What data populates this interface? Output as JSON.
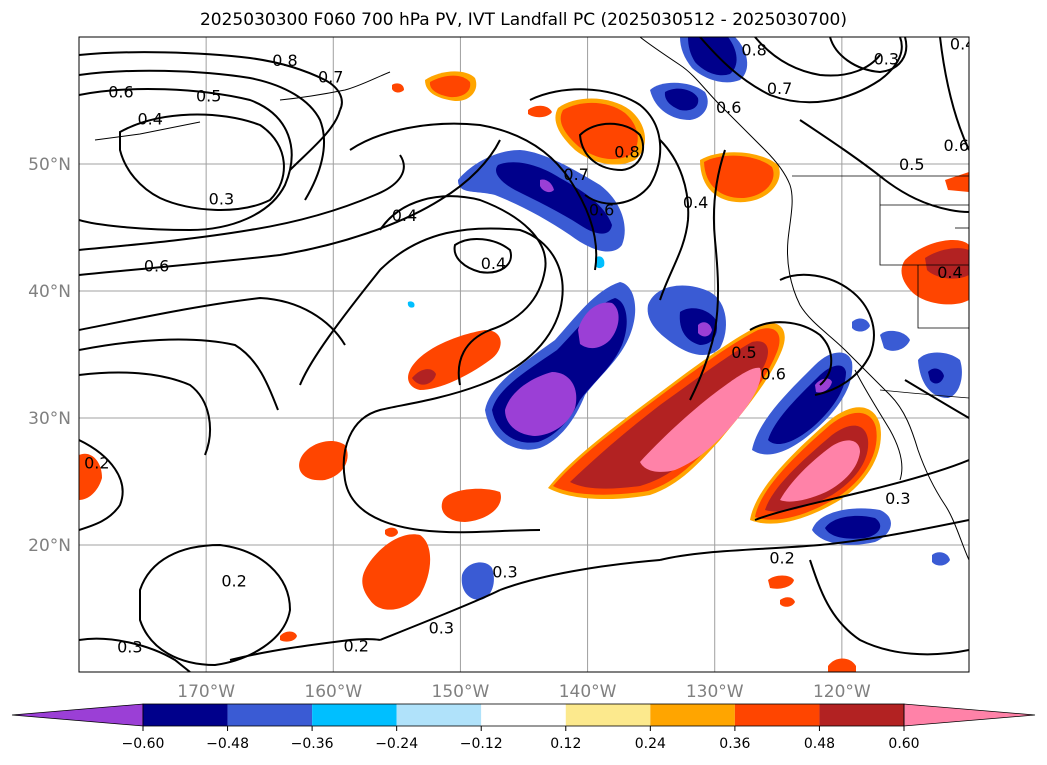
{
  "title": "2025030300 F060 700 hPa PV, IVT Landfall PC (2025030512 - 2025030700)",
  "map": {
    "lon_range": [
      -180,
      -110
    ],
    "lat_range": [
      10,
      60
    ],
    "lat_labels": [
      "50°N",
      "40°N",
      "30°N",
      "20°N"
    ],
    "lon_labels": [
      "170°W",
      "160°W",
      "150°W",
      "140°W",
      "130°W",
      "120°W"
    ],
    "gridlines": true
  },
  "pv_contours": {
    "labels": [
      {
        "text": "0.8",
        "lon": -163.8,
        "lat": 58.2
      },
      {
        "text": "0.7",
        "lon": -160.2,
        "lat": 56.9
      },
      {
        "text": "0.6",
        "lon": -176.7,
        "lat": 55.7
      },
      {
        "text": "0.5",
        "lon": -169.8,
        "lat": 55.4
      },
      {
        "text": "0.4",
        "lon": -174.4,
        "lat": 53.6
      },
      {
        "text": "0.3",
        "lon": -168.8,
        "lat": 47.3
      },
      {
        "text": "0.4",
        "lon": -154.4,
        "lat": 46.0
      },
      {
        "text": "0.6",
        "lon": -173.9,
        "lat": 42.0
      },
      {
        "text": "0.4",
        "lon": -147.4,
        "lat": 42.2
      },
      {
        "text": "0.8",
        "lon": -136.9,
        "lat": 51.0
      },
      {
        "text": "0.7",
        "lon": -140.9,
        "lat": 49.2
      },
      {
        "text": "0.6",
        "lon": -138.9,
        "lat": 46.4
      },
      {
        "text": "0.8",
        "lon": -126.9,
        "lat": 59.0
      },
      {
        "text": "0.7",
        "lon": -124.9,
        "lat": 56.0
      },
      {
        "text": "0.6",
        "lon": -128.9,
        "lat": 54.5
      },
      {
        "text": "0.3",
        "lon": -116.5,
        "lat": 58.3
      },
      {
        "text": "0.5",
        "lon": -114.5,
        "lat": 50.0
      },
      {
        "text": "0.6",
        "lon": -111.0,
        "lat": 51.5
      },
      {
        "text": "0.4",
        "lon": -110.5,
        "lat": 59.5
      },
      {
        "text": "0.4",
        "lon": -131.5,
        "lat": 47.0
      },
      {
        "text": "0.4",
        "lon": -111.5,
        "lat": 41.5
      },
      {
        "text": "0.5",
        "lon": -127.7,
        "lat": 35.2
      },
      {
        "text": "0.6",
        "lon": -125.4,
        "lat": 33.5
      },
      {
        "text": "0.3",
        "lon": -115.6,
        "lat": 23.7
      },
      {
        "text": "0.2",
        "lon": -124.7,
        "lat": 19.0
      },
      {
        "text": "0.3",
        "lon": -146.5,
        "lat": 17.9
      },
      {
        "text": "0.3",
        "lon": -151.5,
        "lat": 13.5
      },
      {
        "text": "0.2",
        "lon": -167.8,
        "lat": 17.2
      },
      {
        "text": "0.2",
        "lon": -158.2,
        "lat": 12.1
      },
      {
        "text": "0.3",
        "lon": -176.0,
        "lat": 12.0
      },
      {
        "text": "0.2",
        "lon": -178.6,
        "lat": 26.5
      }
    ]
  },
  "colorbar": {
    "levels": [
      "−0.60",
      "−0.48",
      "−0.36",
      "−0.24",
      "−0.12",
      "0.12",
      "0.24",
      "0.36",
      "0.48",
      "0.60"
    ],
    "colors": [
      "#9b3fd6",
      "#00008b",
      "#3a5bd4",
      "#00bfff",
      "#b0e2fa",
      "#ffffff",
      "#fce98d",
      "#ffa500",
      "#ff4500",
      "#b22222",
      "#ff82a8"
    ],
    "extend": "both"
  },
  "colors": {
    "neg_060": "#9b3fd6",
    "neg_048": "#00008b",
    "neg_036": "#3a5bd4",
    "neg_024": "#00bfff",
    "neg_012": "#b0e2fa",
    "pos_012": "#fce98d",
    "pos_024": "#ffa500",
    "pos_036": "#ff4500",
    "pos_048": "#b22222",
    "pos_060": "#ff82a8"
  }
}
